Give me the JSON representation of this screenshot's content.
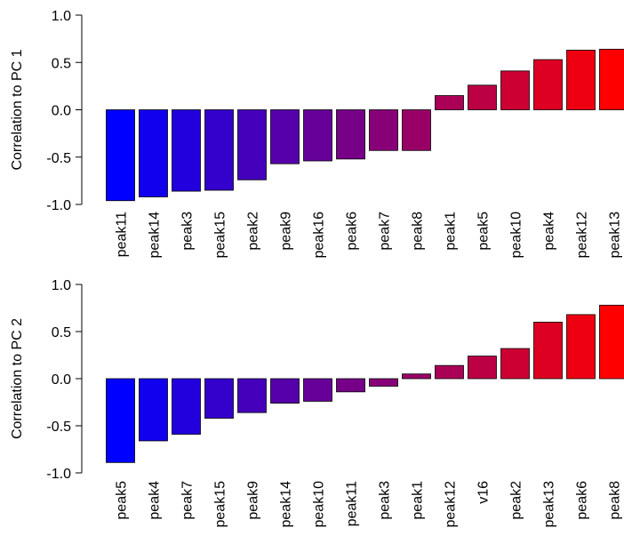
{
  "colors": {
    "low": "#0000ff",
    "high": "#ff0000",
    "bar_stroke": "#000000",
    "axis": "#000000",
    "background": "#ffffff"
  },
  "chart_data": [
    {
      "type": "bar",
      "title": "",
      "xlabel": "",
      "ylabel": "Correlation to PC 1",
      "ylim": [
        -1.0,
        1.0
      ],
      "yticks": [
        "-1.0",
        "-0.5",
        "0.0",
        "0.5",
        "1.0"
      ],
      "grid": false,
      "legend": "none",
      "categories": [
        "peak11",
        "peak14",
        "peak3",
        "peak15",
        "peak2",
        "peak9",
        "peak16",
        "peak6",
        "peak7",
        "peak8",
        "peak1",
        "peak5",
        "peak10",
        "peak4",
        "peak12",
        "peak13"
      ],
      "values": [
        -0.96,
        -0.92,
        -0.86,
        -0.85,
        -0.74,
        -0.57,
        -0.54,
        -0.52,
        -0.43,
        -0.43,
        0.15,
        0.26,
        0.41,
        0.53,
        0.63,
        0.64
      ]
    },
    {
      "type": "bar",
      "title": "",
      "xlabel": "",
      "ylabel": "Correlation to PC 2",
      "ylim": [
        -1.0,
        1.0
      ],
      "yticks": [
        "-1.0",
        "-0.5",
        "0.0",
        "0.5",
        "1.0"
      ],
      "grid": false,
      "legend": "none",
      "categories": [
        "peak5",
        "peak4",
        "peak7",
        "peak15",
        "peak9",
        "peak14",
        "peak10",
        "peak11",
        "peak3",
        "peak1",
        "peak12",
        "v16",
        "peak2",
        "peak13",
        "peak6",
        "peak8"
      ],
      "values": [
        -0.89,
        -0.66,
        -0.59,
        -0.42,
        -0.36,
        -0.26,
        -0.24,
        -0.14,
        -0.08,
        0.05,
        0.14,
        0.24,
        0.32,
        0.6,
        0.68,
        0.78
      ]
    }
  ]
}
